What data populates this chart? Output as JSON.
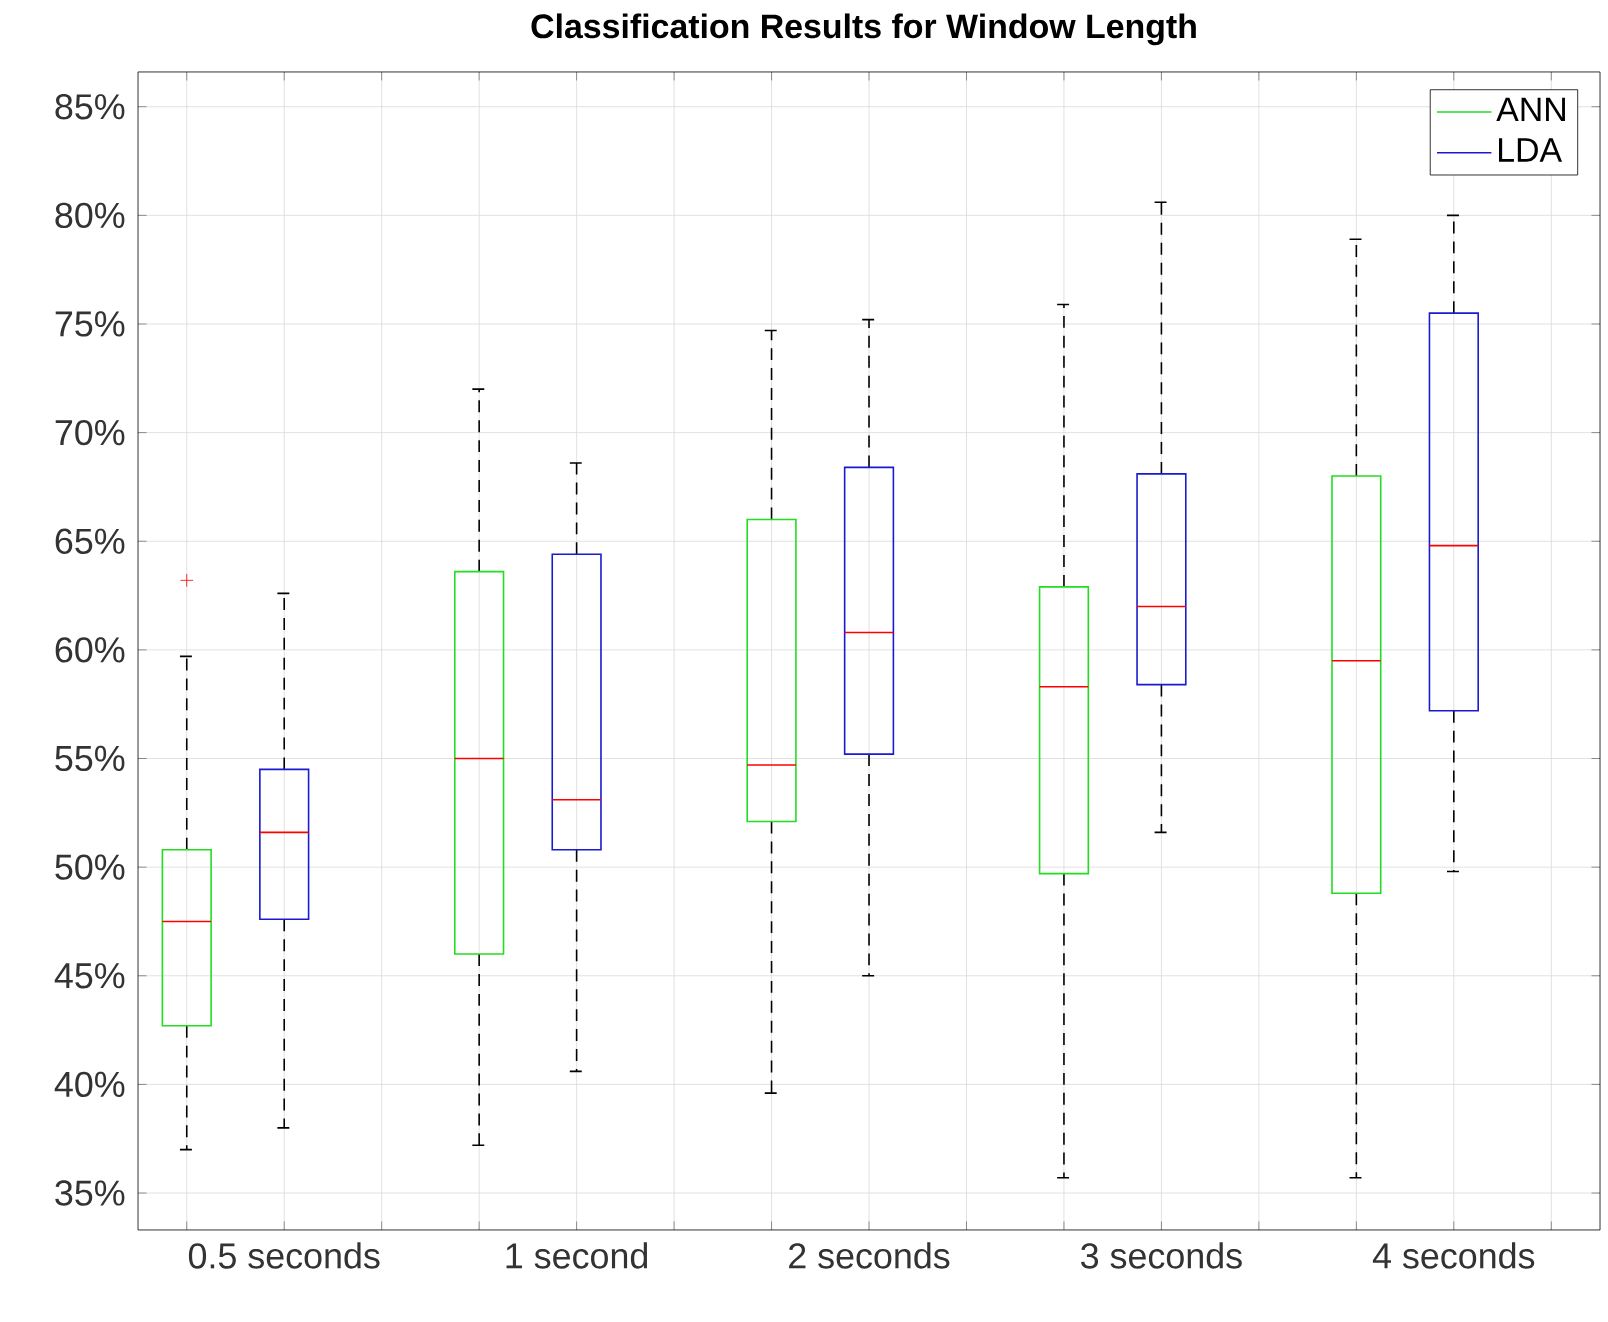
{
  "chart_data": {
    "type": "box",
    "title": "Classification Results for Window Length",
    "categories": [
      "0.5 seconds",
      "1 second",
      "2 seconds",
      "3 seconds",
      "4 seconds"
    ],
    "series": [
      {
        "name": "ANN",
        "color": "#22dd22",
        "boxes": [
          {
            "low": 37.0,
            "q1": 42.7,
            "median": 47.5,
            "q3": 50.8,
            "high": 59.7,
            "outliers": [
              63.2
            ]
          },
          {
            "low": 37.2,
            "q1": 46.0,
            "median": 55.0,
            "q3": 63.6,
            "high": 72.0
          },
          {
            "low": 39.6,
            "q1": 52.1,
            "median": 54.7,
            "q3": 66.0,
            "high": 74.7
          },
          {
            "low": 35.7,
            "q1": 49.7,
            "median": 58.3,
            "q3": 62.9,
            "high": 75.9
          },
          {
            "low": 35.7,
            "q1": 48.8,
            "median": 59.5,
            "q3": 68.0,
            "high": 78.9
          }
        ]
      },
      {
        "name": "LDA",
        "color": "#1a1ad0",
        "boxes": [
          {
            "low": 38.0,
            "q1": 47.6,
            "median": 51.6,
            "q3": 54.5,
            "high": 62.6
          },
          {
            "low": 40.6,
            "q1": 50.8,
            "median": 53.1,
            "q3": 64.4,
            "high": 68.6
          },
          {
            "low": 45.0,
            "q1": 55.2,
            "median": 60.8,
            "q3": 68.4,
            "high": 75.2
          },
          {
            "low": 51.6,
            "q1": 58.4,
            "median": 62.0,
            "q3": 68.1,
            "high": 80.6
          },
          {
            "low": 49.8,
            "q1": 57.2,
            "median": 64.8,
            "q3": 75.5,
            "high": 80.0
          }
        ]
      }
    ],
    "ylim": [
      33.3,
      86.6
    ],
    "yticks": [
      {
        "value": 35,
        "label": "35%"
      },
      {
        "value": 40,
        "label": "40%"
      },
      {
        "value": 45,
        "label": "45%"
      },
      {
        "value": 50,
        "label": "50%"
      },
      {
        "value": 55,
        "label": "55%"
      },
      {
        "value": 60,
        "label": "60%"
      },
      {
        "value": 65,
        "label": "65%"
      },
      {
        "value": 70,
        "label": "70%"
      },
      {
        "value": 75,
        "label": "75%"
      },
      {
        "value": 80,
        "label": "80%"
      },
      {
        "value": 85,
        "label": "85%"
      }
    ],
    "grid": true,
    "legend": "top right"
  }
}
